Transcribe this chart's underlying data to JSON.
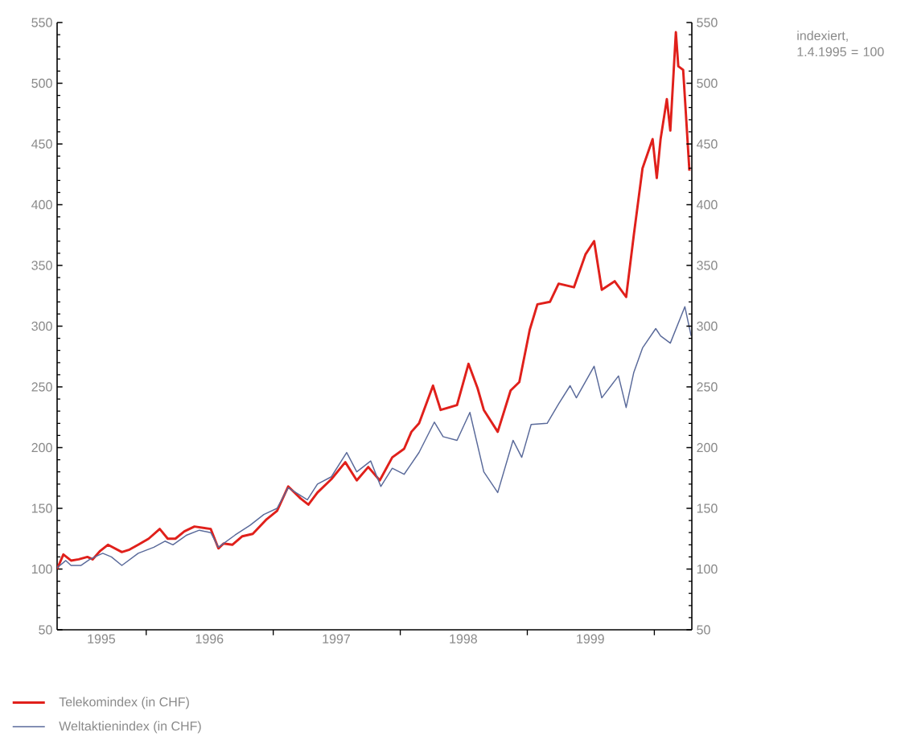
{
  "chart_data": {
    "type": "line",
    "xlim": [
      "1995-04-20",
      "2000-04-18"
    ],
    "ylim": [
      50,
      550
    ],
    "yticks": [
      50,
      100,
      150,
      200,
      250,
      300,
      350,
      400,
      450,
      500,
      550
    ],
    "y2lim": [
      50,
      550
    ],
    "y2ticks": [
      50,
      100,
      150,
      200,
      250,
      300,
      350,
      400,
      450,
      500,
      550
    ],
    "xticks": [
      {
        "value": "1996-01-01",
        "label": null
      },
      {
        "value": "1997-01-01",
        "label": null
      },
      {
        "value": "1998-01-01",
        "label": null
      },
      {
        "value": "1999-01-01",
        "label": null
      },
      {
        "value": "2000-01-01",
        "label": null
      },
      {
        "value": "1995-08-25",
        "label": "1995"
      },
      {
        "value": "1996-07-01",
        "label": "1996"
      },
      {
        "value": "1997-07-01",
        "label": "1997"
      },
      {
        "value": "1998-07-01",
        "label": "1998"
      },
      {
        "value": "1999-07-01",
        "label": "1999"
      }
    ],
    "legend": "bottom",
    "line_style": "solid",
    "marker": "none",
    "grid": false,
    "annotations": [
      "indexiert, 1.4.1995 = 100"
    ],
    "series": [
      {
        "name": "Telekomindex (in CHF)",
        "color": "#e0201b",
        "x": [
          "1995-04-20",
          "1995-05-08",
          "1995-05-30",
          "1995-06-21",
          "1995-07-16",
          "1995-07-31",
          "1995-08-22",
          "1995-09-13",
          "1995-10-23",
          "1995-11-14",
          "1995-12-09",
          "1996-01-08",
          "1996-02-09",
          "1996-03-03",
          "1996-03-25",
          "1996-04-20",
          "1996-05-19",
          "1996-07-05",
          "1996-07-27",
          "1996-08-11",
          "1996-09-05",
          "1996-10-04",
          "1996-11-03",
          "1996-12-13",
          "1997-01-12",
          "1997-02-13",
          "1997-03-21",
          "1997-04-12",
          "1997-05-08",
          "1997-06-17",
          "1997-07-27",
          "1997-08-29",
          "1997-10-01",
          "1997-11-03",
          "1997-12-09",
          "1998-01-12",
          "1998-02-02",
          "1998-02-24",
          "1998-04-05",
          "1998-04-27",
          "1998-06-13",
          "1998-07-16",
          "1998-08-11",
          "1998-08-29",
          "1998-10-08",
          "1998-11-14",
          "1998-12-09",
          "1999-01-08",
          "1999-01-30",
          "1999-03-07",
          "1999-04-01",
          "1999-05-15",
          "1999-06-17",
          "1999-07-12",
          "1999-08-03",
          "1999-09-09",
          "1999-10-12",
          "1999-11-03",
          "1999-11-28",
          "1999-12-27",
          "2000-01-08",
          "2000-01-19",
          "2000-02-06",
          "2000-02-16",
          "2000-03-03",
          "2000-03-10",
          "2000-03-24",
          "2000-03-31",
          "2000-04-11"
        ],
        "values": [
          100,
          112,
          107,
          108,
          110,
          108,
          115,
          120,
          114,
          116,
          120,
          125,
          133,
          125,
          125,
          131,
          135,
          133,
          117,
          121,
          120,
          127,
          129,
          141,
          148,
          168,
          158,
          153,
          163,
          174,
          188,
          173,
          184,
          173,
          192,
          199,
          213,
          220,
          251,
          231,
          235,
          269,
          249,
          231,
          213,
          247,
          254,
          297,
          318,
          320,
          335,
          332,
          359,
          370,
          330,
          337,
          324,
          375,
          430,
          454,
          422,
          454,
          487,
          461,
          542,
          514,
          511,
          479,
          428
        ]
      },
      {
        "name": "Weltaktienindex (in CHF)",
        "color": "#5a6a9a",
        "x": [
          "1995-04-20",
          "1995-05-15",
          "1995-05-30",
          "1995-06-28",
          "1995-07-23",
          "1995-08-29",
          "1995-09-23",
          "1995-10-23",
          "1995-12-09",
          "1996-01-23",
          "1996-02-24",
          "1996-03-18",
          "1996-04-27",
          "1996-06-02",
          "1996-07-05",
          "1996-07-27",
          "1996-09-13",
          "1996-10-26",
          "1996-12-05",
          "1997-01-12",
          "1997-02-13",
          "1997-04-09",
          "1997-05-08",
          "1997-06-17",
          "1997-07-31",
          "1997-08-29",
          "1997-10-08",
          "1997-11-06",
          "1997-12-09",
          "1998-01-12",
          "1998-02-24",
          "1998-04-09",
          "1998-05-04",
          "1998-06-13",
          "1998-07-20",
          "1998-08-29",
          "1998-10-08",
          "1998-11-21",
          "1998-12-16",
          "1999-01-12",
          "1999-02-27",
          "1999-04-01",
          "1999-05-04",
          "1999-05-22",
          "1999-07-12",
          "1999-08-03",
          "1999-09-20",
          "1999-10-12",
          "1999-11-03",
          "1999-11-28",
          "2000-01-05",
          "2000-01-19",
          "2000-02-16",
          "2000-03-29",
          "2000-04-16"
        ],
        "values": [
          101,
          107,
          103,
          103,
          108,
          113,
          110,
          103,
          113,
          118,
          123,
          120,
          128,
          132,
          130,
          118,
          128,
          136,
          145,
          150,
          167,
          157,
          170,
          176,
          196,
          180,
          189,
          168,
          183,
          178,
          196,
          221,
          209,
          206,
          229,
          180,
          163,
          206,
          192,
          219,
          220,
          236,
          251,
          241,
          267,
          241,
          259,
          233,
          262,
          282,
          298,
          292,
          286,
          316,
          292
        ]
      }
    ]
  }
}
